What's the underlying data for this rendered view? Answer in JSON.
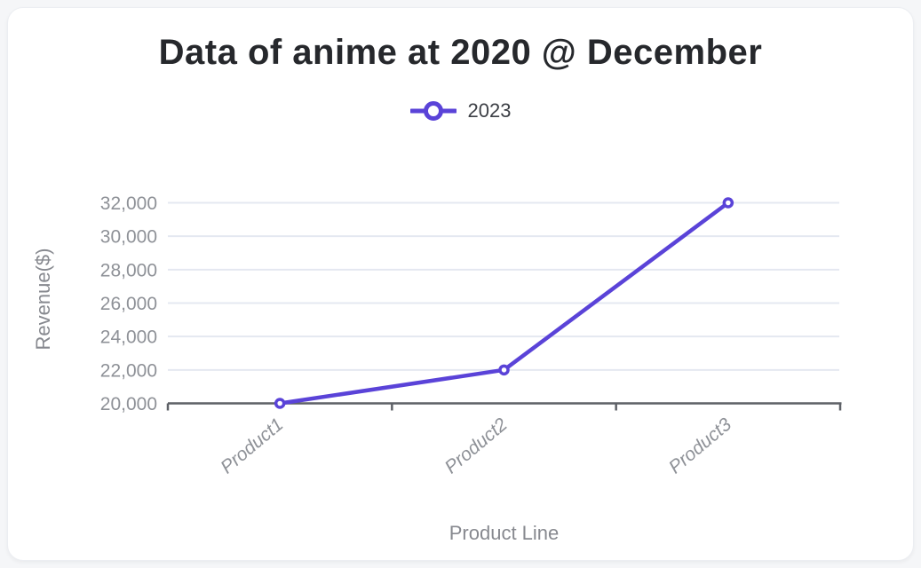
{
  "chart_data": {
    "type": "line",
    "title": "Data of anime at 2020 @ December",
    "categories": [
      "Product1",
      "Product2",
      "Product3"
    ],
    "series": [
      {
        "name": "2023",
        "values": [
          20000,
          22000,
          32000
        ],
        "color": "#5a43d8"
      }
    ],
    "xlabel": "Product Line",
    "ylabel": "Revenue($)",
    "ylim": [
      20000,
      32000
    ],
    "ytick_step": 2000,
    "ytick_labels": [
      "20,000",
      "22,000",
      "24,000",
      "26,000",
      "28,000",
      "30,000",
      "32,000"
    ],
    "grid": true,
    "legend_position": "top",
    "marker": "hollow-circle"
  },
  "colors": {
    "background": "#f5f6f8",
    "card": "#ffffff",
    "title_text": "#26282c",
    "legend_text": "#3c3f45",
    "tick_text": "#8e9197",
    "axis_label_text": "#87898f",
    "gridline": "#e4e8f1",
    "axis_line": "#5e6167",
    "series_line": "#5a43d8"
  }
}
